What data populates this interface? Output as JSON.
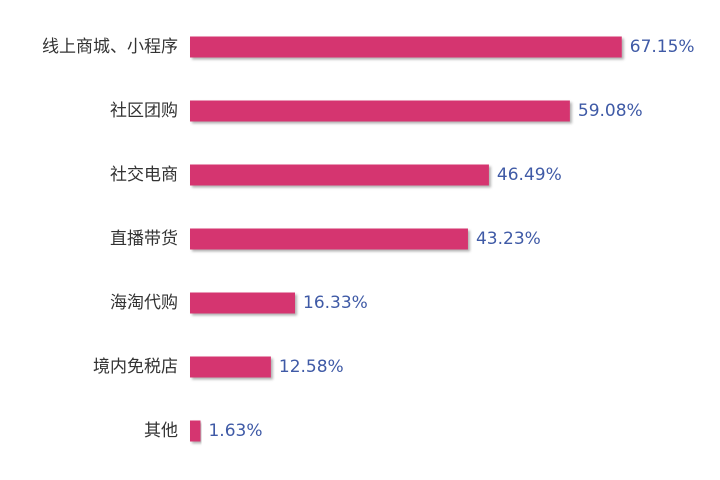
{
  "chart_data": {
    "type": "bar",
    "orientation": "horizontal",
    "categories": [
      "线上商城、小程序",
      "社区团购",
      "社交电商",
      "直播带货",
      "海淘代购",
      "境内免税店",
      "其他"
    ],
    "values": [
      67.15,
      59.08,
      46.49,
      43.23,
      16.33,
      12.58,
      1.63
    ],
    "value_labels": [
      "67.15%",
      "59.08%",
      "46.49%",
      "43.23%",
      "16.33%",
      "12.58%",
      "1.63%"
    ],
    "color": "#d5366f"
  }
}
